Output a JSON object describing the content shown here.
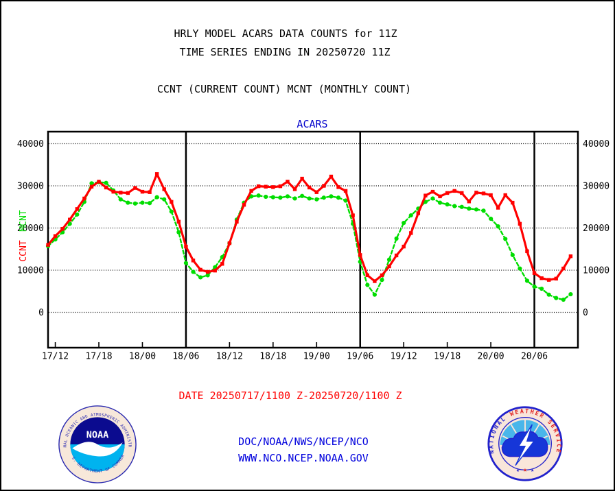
{
  "header": {
    "title_line1": "HRLY MODEL ACARS DATA COUNTS for 11Z",
    "title_line2": "TIME SERIES ENDING IN 20250720 11Z",
    "subtitle": "CCNT (CURRENT COUNT) MCNT (MONTHLY COUNT)"
  },
  "chart_data": {
    "type": "line",
    "title": "ACARS",
    "title_color": "#0000cc",
    "xlabel": "",
    "ylabel_left_labels": [
      {
        "text": "CCNT",
        "color": "#ff0000"
      },
      {
        "text": "MCNT",
        "color": "#00dd00"
      }
    ],
    "ylim": [
      0,
      42800
    ],
    "grid": "dotted-horizontal",
    "yticks": [
      {
        "label": "0",
        "value": 0
      },
      {
        "label": "10000",
        "value": 10000
      },
      {
        "label": "20000",
        "value": 20000
      },
      {
        "label": "30000",
        "value": 30000
      },
      {
        "label": "40000",
        "value": 40000
      }
    ],
    "xticks": [
      {
        "label": "17/12",
        "hour": 1
      },
      {
        "label": "17/18",
        "hour": 7
      },
      {
        "label": "18/00",
        "hour": 13
      },
      {
        "label": "18/06",
        "hour": 19
      },
      {
        "label": "18/12",
        "hour": 25
      },
      {
        "label": "18/18",
        "hour": 31
      },
      {
        "label": "19/00",
        "hour": 37
      },
      {
        "label": "19/06",
        "hour": 43
      },
      {
        "label": "19/12",
        "hour": 49
      },
      {
        "label": "19/18",
        "hour": 55
      },
      {
        "label": "20/00",
        "hour": 61
      },
      {
        "label": "20/06",
        "hour": 67
      }
    ],
    "day_divider_hours": [
      19,
      43,
      67
    ],
    "x_categories": [
      "17/11",
      "17/12",
      "17/13",
      "17/14",
      "17/15",
      "17/16",
      "17/17",
      "17/18",
      "17/19",
      "17/20",
      "17/21",
      "17/22",
      "17/23",
      "18/00",
      "18/01",
      "18/02",
      "18/03",
      "18/04",
      "18/05",
      "18/06",
      "18/07",
      "18/08",
      "18/09",
      "18/10",
      "18/11",
      "18/12",
      "18/13",
      "18/14",
      "18/15",
      "18/16",
      "18/17",
      "18/18",
      "18/19",
      "18/20",
      "18/21",
      "18/22",
      "18/23",
      "19/00",
      "19/01",
      "19/02",
      "19/03",
      "19/04",
      "19/05",
      "19/06",
      "19/07",
      "19/08",
      "19/09",
      "19/10",
      "19/11",
      "19/12",
      "19/13",
      "19/14",
      "19/15",
      "19/16",
      "19/17",
      "19/18",
      "19/19",
      "19/20",
      "19/21",
      "19/22",
      "19/23",
      "20/00",
      "20/01",
      "20/02",
      "20/03",
      "20/04",
      "20/05",
      "20/06",
      "20/07",
      "20/08",
      "20/09",
      "20/10",
      "20/11"
    ],
    "series": [
      {
        "name": "MCNT",
        "color": "#00dd00",
        "style": "dashed-dot-markers",
        "values": [
          15700,
          17300,
          19000,
          21000,
          23200,
          26200,
          30600,
          30900,
          30700,
          28900,
          26800,
          26000,
          25800,
          26000,
          25900,
          27300,
          26800,
          23900,
          19000,
          11700,
          9600,
          8300,
          8800,
          10700,
          13100,
          16400,
          22000,
          26000,
          27500,
          27700,
          27400,
          27300,
          27200,
          27500,
          27000,
          27600,
          27000,
          26800,
          27200,
          27500,
          27200,
          26500,
          21000,
          12000,
          6500,
          4200,
          7700,
          12500,
          17500,
          21200,
          23000,
          24600,
          26200,
          27000,
          26000,
          25600,
          25200,
          25000,
          24600,
          24400,
          24100,
          22200,
          20400,
          17400,
          13600,
          10400,
          7500,
          6100,
          5600,
          4200,
          3400,
          3000,
          4300
        ]
      },
      {
        "name": "CCNT",
        "color": "#ff0000",
        "style": "solid-square-markers",
        "values": [
          16000,
          18100,
          19800,
          22000,
          24500,
          27000,
          29800,
          31000,
          29600,
          28600,
          28400,
          28300,
          29500,
          28600,
          28500,
          32800,
          29200,
          26200,
          21500,
          15600,
          12300,
          10100,
          9600,
          9900,
          11500,
          16400,
          21500,
          25500,
          28800,
          29900,
          29800,
          29700,
          29900,
          31000,
          29200,
          31700,
          29600,
          28500,
          30000,
          32200,
          29700,
          28800,
          23000,
          13600,
          8800,
          7400,
          8800,
          10900,
          13500,
          15600,
          18800,
          23500,
          27700,
          28600,
          27500,
          28300,
          28800,
          28300,
          26300,
          28400,
          28200,
          27800,
          24800,
          27800,
          26000,
          21000,
          14500,
          9300,
          8100,
          7700,
          8000,
          10400,
          13300
        ]
      }
    ]
  },
  "footer": {
    "date_range": "DATE 20250717/1100 Z-20250720/1100 Z",
    "org_line": "DOC/NOAA/NWS/NCEP/NCO",
    "url_line": "WWW.NCO.NCEP.NOAA.GOV"
  },
  "logos": {
    "noaa": {
      "name": "NOAA",
      "ring_top": "NATIONAL OCEANIC AND ATMOSPHERIC ADMINISTRATION",
      "ring_bottom": "U. S. DEPARTMENT OF COMMERCE",
      "navy": "#0b0b8f",
      "cyan": "#00b3ef"
    },
    "nws": {
      "word1": "NATIONAL",
      "word2": "WEATHER",
      "word3": "SERVICE",
      "blue": "#2222cc",
      "red": "#e02020",
      "stars": "★ ★ ★"
    }
  }
}
